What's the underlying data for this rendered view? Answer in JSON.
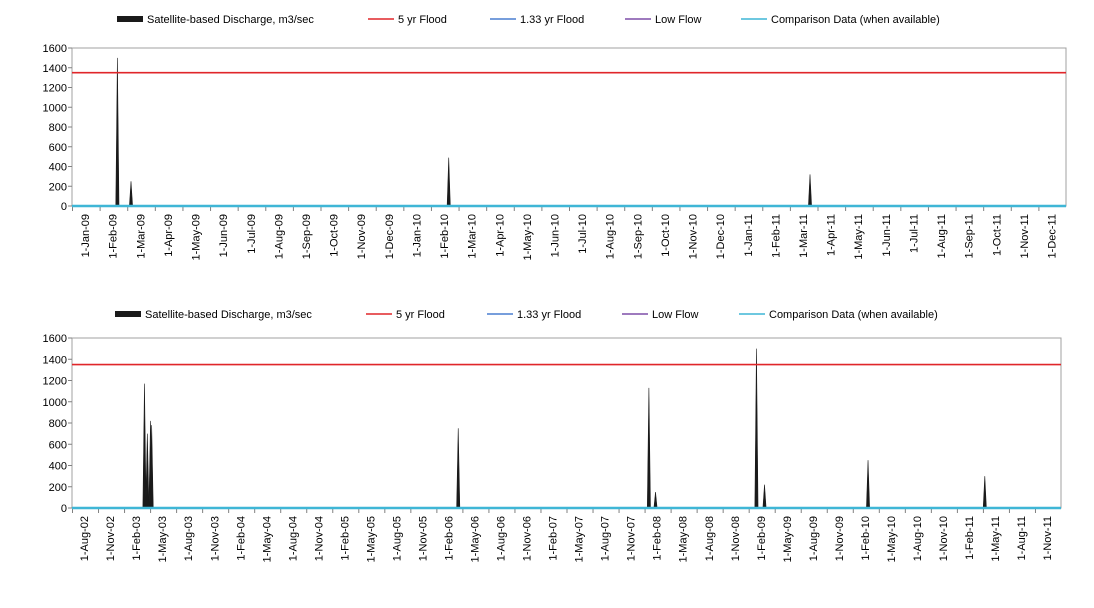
{
  "legend": {
    "items": [
      {
        "label": "Satellite-based Discharge, m3/sec",
        "color": "#1a1a1a",
        "kind": "area"
      },
      {
        "label": "5 yr Flood",
        "color": "#e0262a",
        "kind": "line"
      },
      {
        "label": "1.33 yr Flood",
        "color": "#4a7fd0",
        "kind": "line"
      },
      {
        "label": "Low Flow",
        "color": "#7f4fa8",
        "kind": "line"
      },
      {
        "label": "Comparison Data (when available)",
        "color": "#3fb6d6",
        "kind": "line"
      }
    ]
  },
  "chart_data": [
    {
      "type": "area",
      "ylim": [
        0,
        1600
      ],
      "yticks": [
        0,
        200,
        400,
        600,
        800,
        1000,
        1200,
        1400,
        1600
      ],
      "x_tick_labels": [
        "1-Jan-09",
        "1-Feb-09",
        "1-Mar-09",
        "1-Apr-09",
        "1-May-09",
        "1-Jun-09",
        "1-Jul-09",
        "1-Aug-09",
        "1-Sep-09",
        "1-Oct-09",
        "1-Nov-09",
        "1-Dec-09",
        "1-Jan-10",
        "1-Feb-10",
        "1-Mar-10",
        "1-Apr-10",
        "1-May-10",
        "1-Jun-10",
        "1-Jul-10",
        "1-Aug-10",
        "1-Sep-10",
        "1-Oct-10",
        "1-Nov-10",
        "1-Dec-10",
        "1-Jan-11",
        "1-Feb-11",
        "1-Mar-11",
        "1-Apr-11",
        "1-May-11",
        "1-Jun-11",
        "1-Jul-11",
        "1-Aug-11",
        "1-Sep-11",
        "1-Oct-11",
        "1-Nov-11",
        "1-Dec-11"
      ],
      "xlim": [
        "2009-01-01",
        "2012-01-01"
      ],
      "series": [
        {
          "name": "Satellite-based Discharge, m3/sec",
          "points": [
            [
              "2009-02-20",
              1500
            ],
            [
              "2009-03-07",
              250
            ],
            [
              "2010-02-20",
              490
            ],
            [
              "2011-03-25",
              320
            ]
          ]
        }
      ],
      "reference_lines": [
        {
          "name": "5 yr Flood",
          "value": 1350
        },
        {
          "name": "Comparison Data (when available)",
          "value": 0
        }
      ]
    },
    {
      "type": "area",
      "ylim": [
        0,
        1600
      ],
      "yticks": [
        0,
        200,
        400,
        600,
        800,
        1000,
        1200,
        1400,
        1600
      ],
      "x_tick_labels": [
        "1-Aug-02",
        "1-Nov-02",
        "1-Feb-03",
        "1-May-03",
        "1-Aug-03",
        "1-Nov-03",
        "1-Feb-04",
        "1-May-04",
        "1-Aug-04",
        "1-Nov-04",
        "1-Feb-05",
        "1-May-05",
        "1-Aug-05",
        "1-Nov-05",
        "1-Feb-06",
        "1-May-06",
        "1-Aug-06",
        "1-Nov-06",
        "1-Feb-07",
        "1-May-07",
        "1-Aug-07",
        "1-Nov-07",
        "1-Feb-08",
        "1-May-08",
        "1-Aug-08",
        "1-Nov-08",
        "1-Feb-09",
        "1-May-09",
        "1-Aug-09",
        "1-Nov-09",
        "1-Feb-10",
        "1-May-10",
        "1-Aug-10",
        "1-Nov-10",
        "1-Feb-11",
        "1-May-11",
        "1-Aug-11",
        "1-Nov-11"
      ],
      "xlim": [
        "2002-08-01",
        "2011-12-31"
      ],
      "series": [
        {
          "name": "Satellite-based Discharge, m3/sec",
          "points": [
            [
              "2003-04-10",
              1170
            ],
            [
              "2003-04-20",
              700
            ],
            [
              "2003-05-01",
              820
            ],
            [
              "2003-05-05",
              780
            ],
            [
              "2006-04-05",
              750
            ],
            [
              "2008-01-28",
              1130
            ],
            [
              "2008-02-20",
              150
            ],
            [
              "2009-02-05",
              1500
            ],
            [
              "2009-03-05",
              220
            ],
            [
              "2010-02-28",
              450
            ],
            [
              "2011-04-10",
              300
            ]
          ]
        }
      ],
      "reference_lines": [
        {
          "name": "5 yr Flood",
          "value": 1350
        },
        {
          "name": "Comparison Data (when available)",
          "value": 0
        }
      ]
    }
  ]
}
